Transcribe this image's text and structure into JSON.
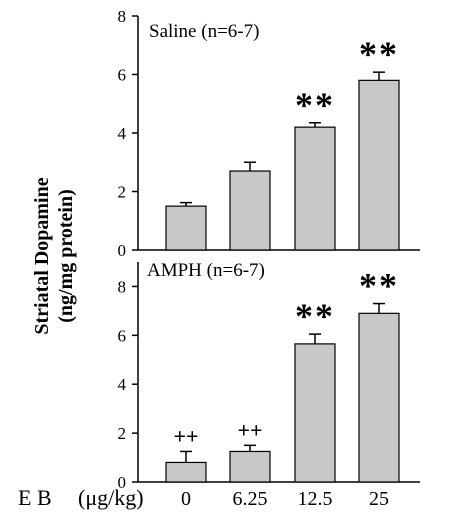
{
  "chart_data": [
    {
      "type": "bar",
      "title": "Saline (n=6-7)",
      "categories": [
        "0",
        "6.25",
        "12.5",
        "25"
      ],
      "values": [
        1.5,
        2.7,
        4.2,
        5.8
      ],
      "errors": [
        0.12,
        0.3,
        0.15,
        0.28
      ],
      "annotations": [
        "",
        "",
        "**",
        "**"
      ],
      "ylim": [
        0,
        8
      ],
      "yticks": [
        "0",
        "2",
        "4",
        "6",
        "8"
      ],
      "ytick_values": [
        0,
        2,
        4,
        6,
        8
      ]
    },
    {
      "type": "bar",
      "title": "AMPH (n=6-7)",
      "categories": [
        "0",
        "6.25",
        "12.5",
        "25"
      ],
      "values": [
        0.8,
        1.25,
        5.65,
        6.9
      ],
      "errors": [
        0.45,
        0.25,
        0.4,
        0.4
      ],
      "annotations": [
        "++",
        "++",
        "**",
        "**"
      ],
      "ylim": [
        0,
        9
      ],
      "yticks": [
        "0",
        "2",
        "4",
        "6",
        "8"
      ],
      "ytick_values": [
        0,
        2,
        4,
        6,
        8
      ]
    }
  ],
  "ylabel": {
    "line1": "Striatal Dopamine",
    "line2": "(ng/mg protein)"
  },
  "xlabel": {
    "name": "E B",
    "unit": "(μg/kg)"
  }
}
